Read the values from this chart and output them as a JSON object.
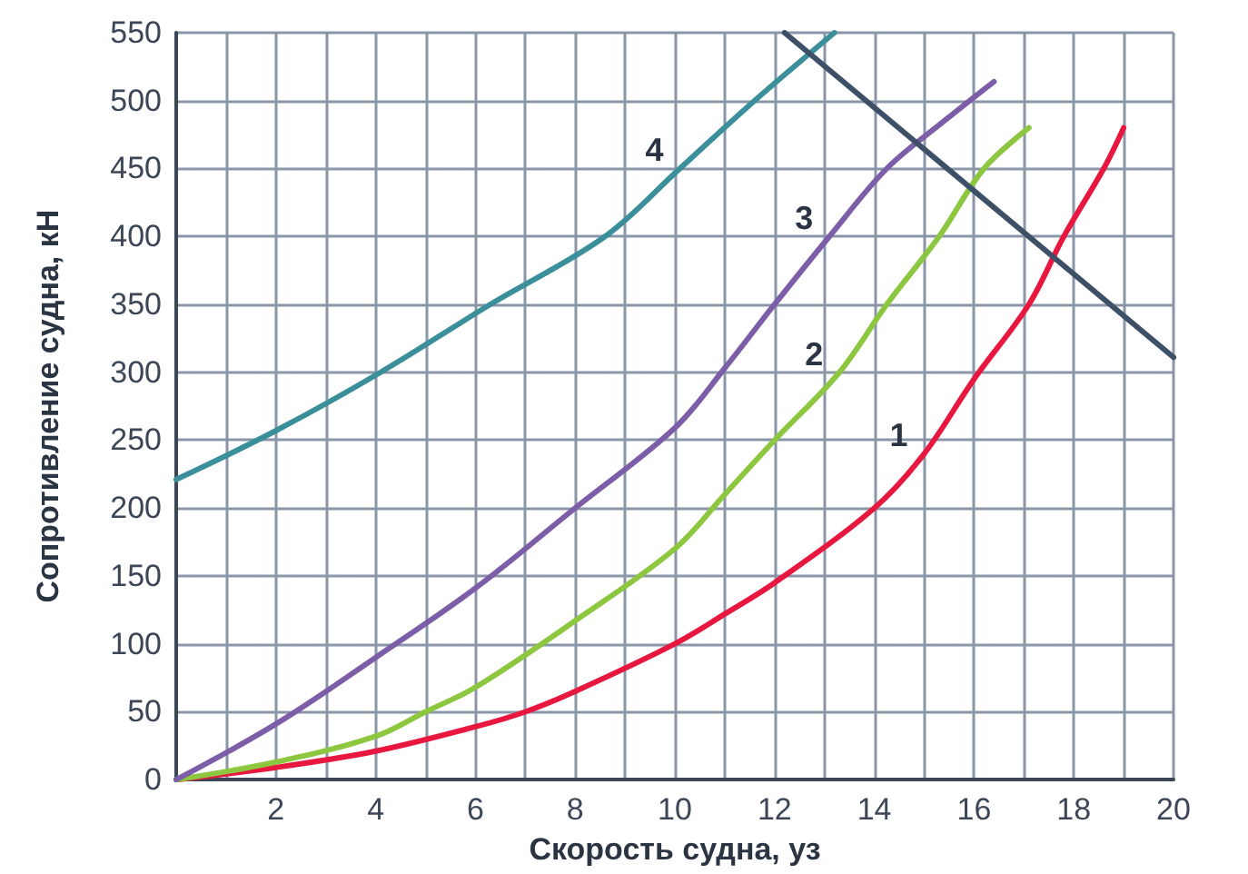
{
  "chart_data": {
    "type": "line",
    "xlabel": "Скорость судна, уз",
    "ylabel": "Сопротивление судна, кН",
    "series": [
      {
        "name": "1",
        "color": "#e8173f",
        "x": [
          0,
          2,
          4,
          6,
          7,
          8,
          10,
          11,
          12,
          14,
          15,
          16,
          17.1,
          17.8,
          18.6,
          19
        ],
        "values": [
          0,
          9,
          21,
          39,
          50,
          65,
          100,
          122,
          145,
          200,
          240,
          295,
          350,
          400,
          450,
          480
        ]
      },
      {
        "name": "2",
        "color": "#8dc63f",
        "x": [
          0,
          2,
          4,
          5,
          6,
          8,
          10,
          11,
          12,
          13.3,
          14.25,
          15.3,
          16.2,
          17.1
        ],
        "values": [
          0,
          13,
          32,
          50,
          68,
          117,
          170,
          210,
          250,
          300,
          350,
          400,
          450,
          480
        ]
      },
      {
        "name": "3",
        "color": "#7b5ea7",
        "x": [
          0,
          2,
          4,
          6,
          8,
          10,
          11,
          12,
          13.1,
          14.25,
          15.4,
          16.4
        ],
        "values": [
          0,
          41,
          90,
          141,
          200,
          259,
          303,
          350,
          400,
          450,
          485,
          514
        ]
      },
      {
        "name": "4",
        "color": "#3a8f9a",
        "x": [
          0,
          2,
          4.1,
          6.3,
          8.6,
          10.1,
          11.6,
          13.2
        ],
        "values": [
          221,
          257,
          300,
          350,
          400,
          450,
          500,
          550
        ]
      },
      {
        "color": "#3d5068",
        "x": [
          12.2,
          20
        ],
        "values": [
          550,
          311
        ]
      }
    ],
    "xlim": [
      0,
      20
    ],
    "ylim": [
      0,
      550
    ],
    "xticks": [
      {
        "value": 0,
        "label": null
      },
      {
        "value": 1,
        "label": null
      },
      2,
      {
        "value": 3,
        "label": null
      },
      4,
      {
        "value": 5,
        "label": null
      },
      6,
      {
        "value": 7,
        "label": null
      },
      8,
      {
        "value": 9,
        "label": null
      },
      10,
      {
        "value": 11,
        "label": null
      },
      12,
      {
        "value": 13,
        "label": null
      },
      14,
      {
        "value": 15,
        "label": null
      },
      16,
      {
        "value": 17,
        "label": null
      },
      18,
      {
        "value": 19,
        "label": null
      },
      20
    ],
    "yticks": [
      0,
      50,
      100,
      150,
      200,
      250,
      300,
      350,
      400,
      450,
      500,
      550
    ],
    "grid": true,
    "legend": false,
    "marker": "none",
    "line_style": "solid"
  }
}
